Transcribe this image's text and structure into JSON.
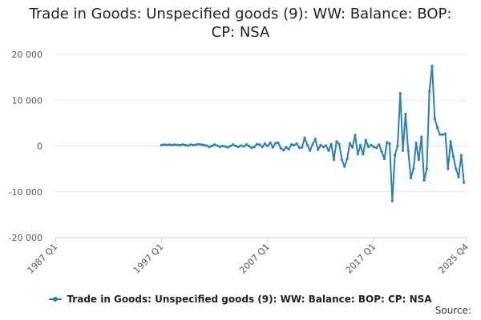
{
  "chart_data": {
    "type": "line",
    "title_lines": [
      "Trade in Goods: Unspecified goods (9): WW: Balance: BOP:",
      "CP: NSA"
    ],
    "xlabel": "",
    "ylabel": "",
    "x_tick_labels": [
      "1987 Q1",
      "1997 Q1",
      "2007 Q1",
      "2017 Q1",
      "2025 Q4"
    ],
    "x_tick_positions": [
      0,
      40,
      80,
      120,
      155
    ],
    "x_range": [
      0,
      155
    ],
    "x_first_label": "1987 Q1",
    "y_ticks": [
      -20000,
      -10000,
      0,
      10000,
      20000
    ],
    "y_tick_labels": [
      "-20 000",
      "-10 000",
      "0",
      "10 000",
      "20 000"
    ],
    "ylim": [
      -20000,
      20000
    ],
    "grid": "horizontal",
    "legend_position": "bottom",
    "series": [
      {
        "name": "Trade in Goods: Unspecified goods (9): WW: Balance: BOP: CP: NSA",
        "x_start": 40,
        "values": [
          200,
          300,
          250,
          300,
          200,
          300,
          250,
          200,
          300,
          200,
          100,
          300,
          200,
          300,
          400,
          300,
          200,
          100,
          -200,
          0,
          300,
          100,
          -200,
          0,
          -100,
          -300,
          0,
          300,
          0,
          -200,
          100,
          -100,
          300,
          0,
          -400,
          -200,
          400,
          300,
          -200,
          500,
          0,
          700,
          -300,
          600,
          700,
          -500,
          -900,
          -300,
          -700,
          300,
          200,
          500,
          -400,
          -300,
          1800,
          200,
          -1000,
          400,
          1500,
          -800,
          200,
          -200,
          100,
          -1000,
          400,
          -3000,
          1000,
          400,
          -3000,
          -4500,
          -2800,
          600,
          -300,
          2400,
          -1800,
          200,
          -1800,
          1300,
          -200,
          200,
          -200,
          -400,
          300,
          -1200,
          -2800,
          800,
          500,
          -12000,
          -2000,
          0,
          11500,
          -1000,
          7000,
          -1000,
          -7000,
          -5000,
          700,
          -3000,
          2000,
          -7500,
          -5000,
          12000,
          17500,
          6000,
          4000,
          2500,
          2500,
          2700,
          -5000,
          1000,
          -2300,
          -5000,
          -6800,
          -2000,
          -8000
        ]
      }
    ],
    "color": "#2d7fb8",
    "source_label": "Source:"
  }
}
